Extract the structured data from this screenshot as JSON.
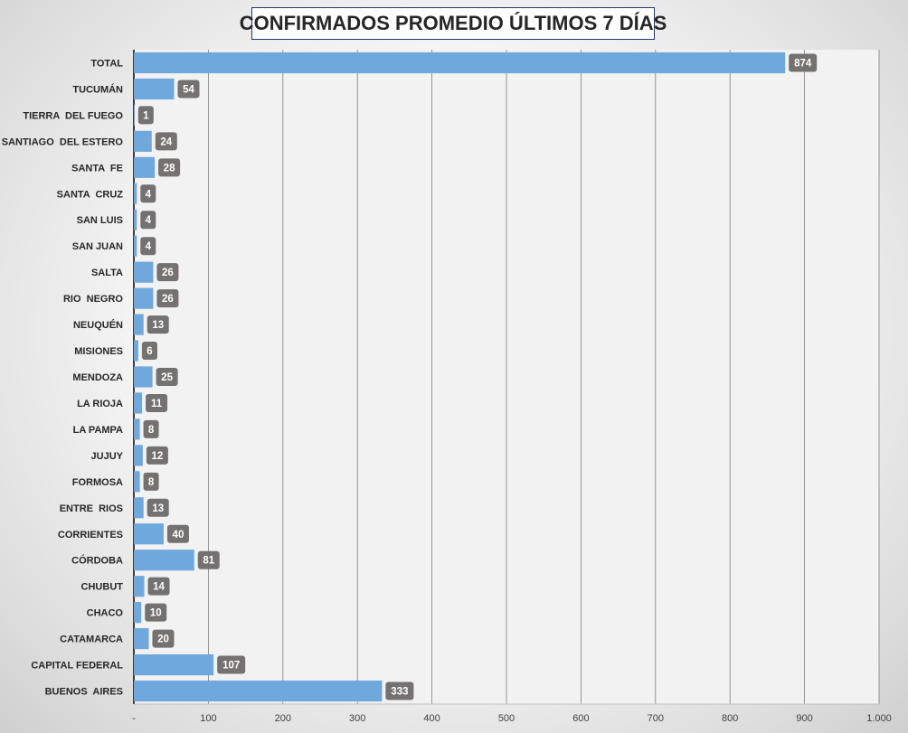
{
  "chart_data": {
    "type": "bar",
    "orientation": "horizontal",
    "title": "CONFIRMADOS PROMEDIO ÚLTIMOS 7 DÍAS",
    "categories": [
      "TOTAL",
      "TUCUMÁN",
      "TIERRA  DEL FUEGO",
      "SANTIAGO  DEL ESTERO",
      "SANTA  FE",
      "SANTA  CRUZ",
      "SAN LUIS",
      "SAN JUAN",
      "SALTA",
      "RIO  NEGRO",
      "NEUQUÉN",
      "MISIONES",
      "MENDOZA",
      "LA RIOJA",
      "LA PAMPA",
      "JUJUY",
      "FORMOSA",
      "ENTRE  RIOS",
      "CORRIENTES",
      "CÓRDOBA",
      "CHUBUT",
      "CHACO",
      "CATAMARCA",
      "CAPITAL FEDERAL",
      "BUENOS  AIRES"
    ],
    "values": [
      874,
      54,
      1,
      24,
      28,
      4,
      4,
      4,
      26,
      26,
      13,
      6,
      25,
      11,
      8,
      12,
      8,
      13,
      40,
      81,
      14,
      10,
      20,
      107,
      333
    ],
    "data_labels": [
      "874",
      "54",
      "1",
      "24",
      "28",
      "4",
      "4",
      "4",
      "26",
      "26",
      "13",
      "6",
      "25",
      "11",
      "8",
      "12",
      "8",
      "13",
      "40",
      "81",
      "14",
      "10",
      "20",
      "107",
      "333"
    ],
    "xlim": [
      0,
      1000
    ],
    "x_ticks": [
      0,
      100,
      200,
      300,
      400,
      500,
      600,
      700,
      800,
      900,
      1000
    ],
    "x_tick_labels": [
      "-",
      "100",
      "200",
      "300",
      "400",
      "500",
      "600",
      "700",
      "800",
      "900",
      "1.000"
    ],
    "grid": true,
    "legend": "none",
    "colors": {
      "bar": "#6fa8dc",
      "label_bg": "#767171",
      "label_text": "#ffffff",
      "plot_bg": "#f2f2f2",
      "grid": "#7f7f7f",
      "category_text": "#262626",
      "title_border": "#1f3864"
    }
  }
}
